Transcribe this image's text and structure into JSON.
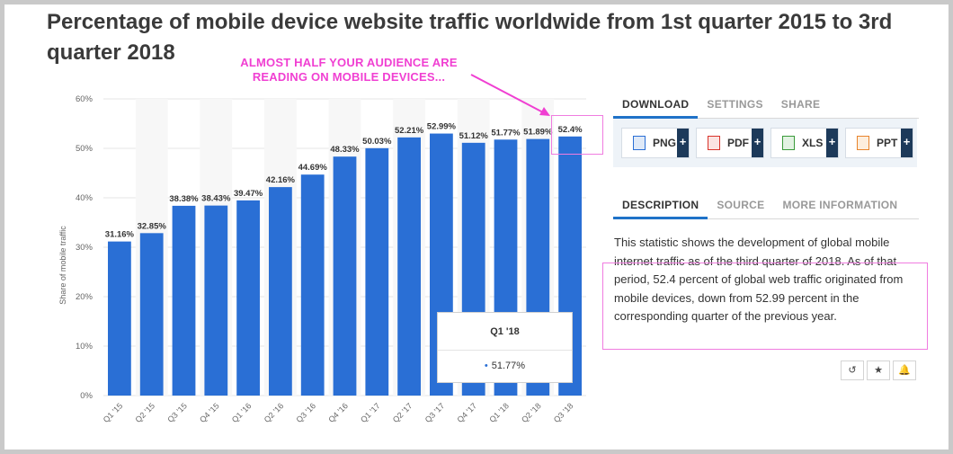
{
  "title": "Percentage of mobile device website traffic worldwide from 1st quarter 2015 to 3rd quarter 2018",
  "annotation": {
    "line1": "ALMOST HALF YOUR AUDIENCE ARE",
    "line2": "READING ON MOBILE DEVICES..."
  },
  "colors": {
    "bar": "#2a6fd5",
    "accent": "#f03fd2",
    "tab_active": "#1f72c8"
  },
  "chart_data": {
    "type": "bar",
    "categories": [
      "Q1 '15",
      "Q2 '15",
      "Q3 '15",
      "Q4 '15",
      "Q1 '16",
      "Q2 '16",
      "Q3 '16",
      "Q4 '16",
      "Q1 '17",
      "Q2 '17",
      "Q3 '17",
      "Q4 '17",
      "Q1 '18",
      "Q2 '18",
      "Q3 '18"
    ],
    "values": [
      31.16,
      32.85,
      38.38,
      38.43,
      39.47,
      42.16,
      44.69,
      48.33,
      50.03,
      52.21,
      52.99,
      51.12,
      51.77,
      51.89,
      52.4
    ],
    "data_labels": [
      "31.16%",
      "32.85%",
      "38.38%",
      "38.43%",
      "39.47%",
      "42.16%",
      "44.69%",
      "48.33%",
      "50.03%",
      "52.21%",
      "52.99%",
      "51.12%",
      "51.77%",
      "51.89%",
      "52.4%"
    ],
    "ylabel": "Share of mobile traffic",
    "ylim": [
      0,
      60
    ],
    "yticks": [
      0,
      10,
      20,
      30,
      40,
      50,
      60
    ],
    "ytick_labels": [
      "0%",
      "10%",
      "20%",
      "30%",
      "40%",
      "50%",
      "60%"
    ],
    "grid": true,
    "tooltip": {
      "title": "Q1 '18",
      "value": "51.77%"
    }
  },
  "download_tabs": {
    "download": "DOWNLOAD",
    "settings": "SETTINGS",
    "share": "SHARE"
  },
  "download_buttons": {
    "png": {
      "label": "PNG",
      "plus": "+",
      "icon": "image-file-icon",
      "color": "#2a6fd5"
    },
    "pdf": {
      "label": "PDF",
      "plus": "+",
      "icon": "pdf-file-icon",
      "color": "#d9342b"
    },
    "xls": {
      "label": "XLS",
      "plus": "+",
      "icon": "spreadsheet-file-icon",
      "color": "#3a9a3a"
    },
    "ppt": {
      "label": "PPT",
      "plus": "+",
      "icon": "presentation-file-icon",
      "color": "#e8842c"
    }
  },
  "info_tabs": {
    "description": "DESCRIPTION",
    "source": "SOURCE",
    "more_information": "MORE INFORMATION"
  },
  "description": "This statistic shows the development of global mobile internet traffic as of the third quarter of 2018. As of that period, 52.4 percent of global web traffic originated from mobile devices, down from 52.99 percent in the corresponding quarter of the previous year.",
  "icon_buttons": {
    "history": "↺",
    "favorite": "★",
    "alert": "🔔"
  }
}
